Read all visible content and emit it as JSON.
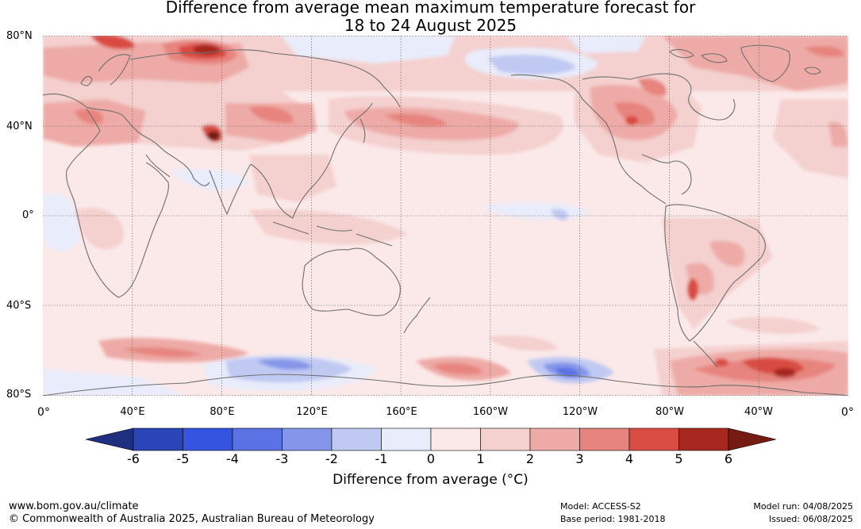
{
  "title_line1": "Difference from average mean maximum temperature forecast for",
  "title_line2": "18 to 24 August 2025",
  "lat_labels": [
    "80°N",
    "40°N",
    "0°",
    "40°S",
    "80°S"
  ],
  "lon_labels": [
    "0°",
    "40°E",
    "80°E",
    "120°E",
    "160°E",
    "160°W",
    "120°W",
    "80°W",
    "40°W",
    "0°"
  ],
  "colorbar": {
    "ticks": [
      "-6",
      "-5",
      "-4",
      "-3",
      "-2",
      "-1",
      "0",
      "1",
      "2",
      "3",
      "4",
      "5",
      "6"
    ],
    "colors": [
      "#1f2f7f",
      "#2a45b8",
      "#3555e0",
      "#5b72e4",
      "#8596ea",
      "#c0c9f2",
      "#e9ecfa",
      "#fbe9e9",
      "#f4d0cf",
      "#eeaaa6",
      "#e7847e",
      "#d94c43",
      "#a6281f",
      "#761a14"
    ],
    "label": "Difference from average (°C)"
  },
  "footer": {
    "url": "www.bom.gov.au/climate",
    "copyright": "© Commonwealth of Australia 2025, Australian Bureau of Meteorology",
    "model": "Model: ACCESS-S2",
    "base_period": "Base period: 1981-2018",
    "model_run": "Model run: 04/08/2025",
    "issued": "Issued: 06/08/2025"
  }
}
